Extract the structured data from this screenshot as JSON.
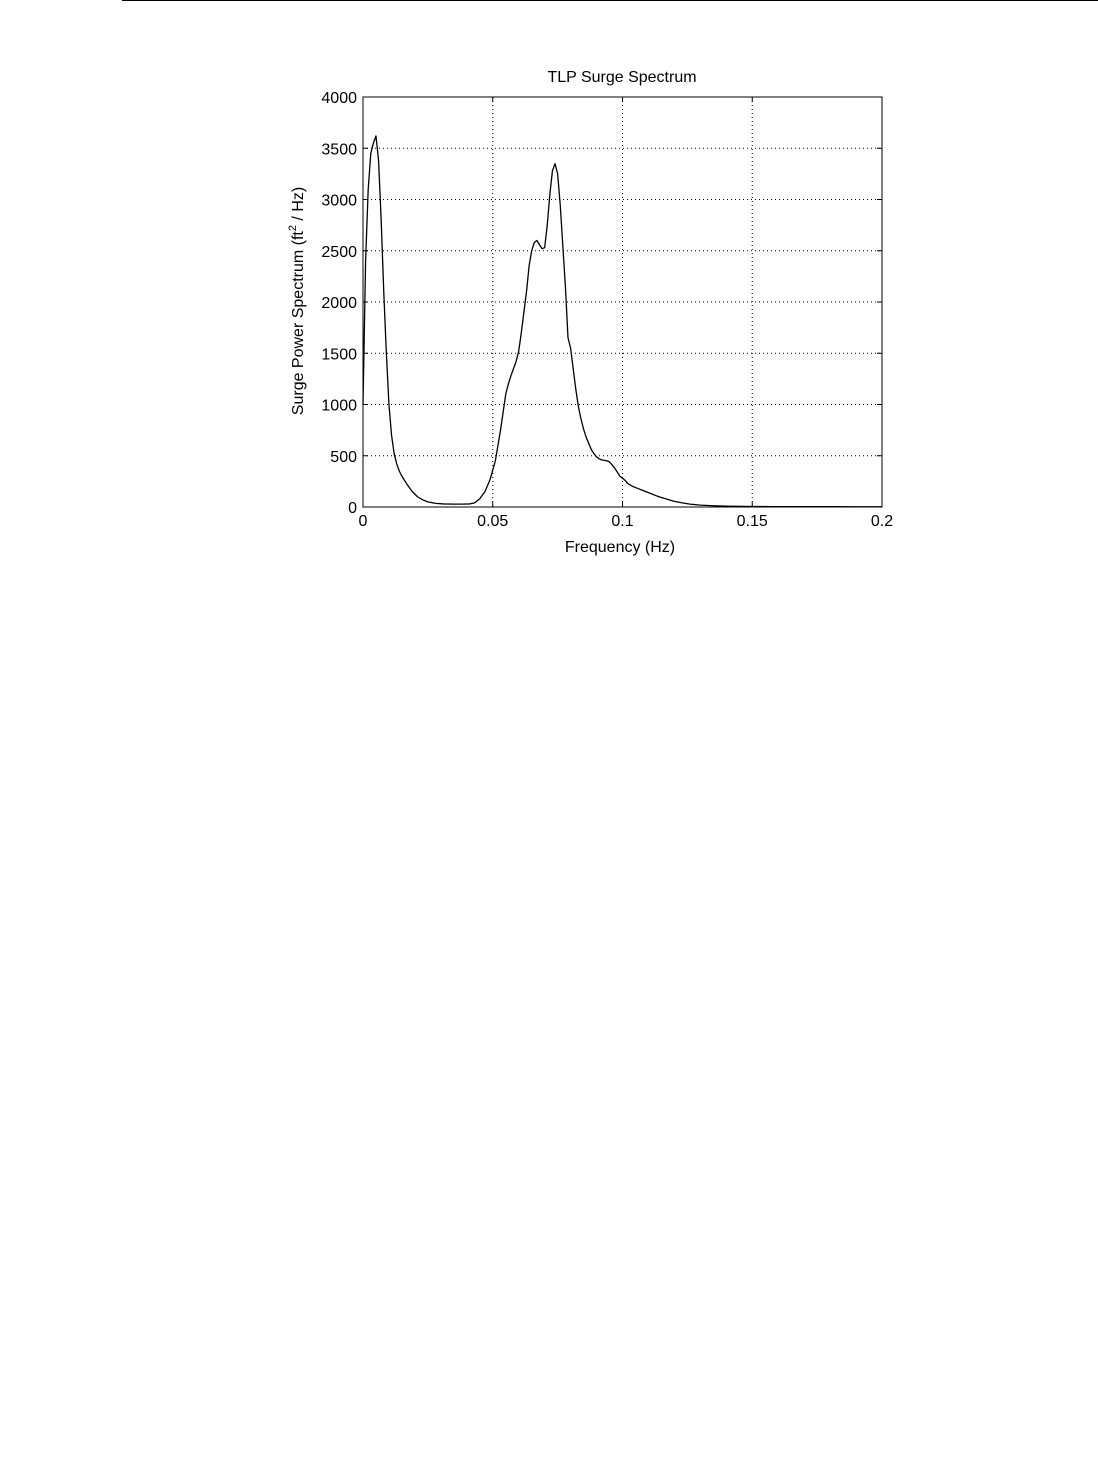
{
  "chart_data": {
    "type": "line",
    "title": "TLP Surge Spectrum",
    "xlabel": "Frequency (Hz)",
    "ylabel_prefix": "Surge Power Spectrum (ft",
    "ylabel_superscript": "2",
    "ylabel_suffix": " / Hz)",
    "xlim": [
      0,
      0.2
    ],
    "ylim": [
      0,
      4000
    ],
    "x_ticks": [
      0,
      0.05,
      0.1,
      0.15,
      0.2
    ],
    "x_tick_labels": [
      "0",
      "0.05",
      "0.1",
      "0.15",
      "0.2"
    ],
    "y_ticks": [
      0,
      500,
      1000,
      1500,
      2000,
      2500,
      3000,
      3500,
      4000
    ],
    "y_tick_labels": [
      "0",
      "500",
      "1000",
      "1500",
      "2000",
      "2500",
      "3000",
      "3500",
      "4000"
    ],
    "grid": true,
    "line_color": "#000000",
    "series": [
      {
        "x": [
          0,
          0.001,
          0.002,
          0.003,
          0.004,
          0.005,
          0.006,
          0.007,
          0.008,
          0.009,
          0.01,
          0.011,
          0.012,
          0.013,
          0.014,
          0.015,
          0.017,
          0.019,
          0.021,
          0.023,
          0.025,
          0.028,
          0.031,
          0.035,
          0.038,
          0.041,
          0.043,
          0.045,
          0.047,
          0.049,
          0.051,
          0.053,
          0.055,
          0.056,
          0.057,
          0.058,
          0.059,
          0.06,
          0.061,
          0.062,
          0.063,
          0.064,
          0.065,
          0.066,
          0.067,
          0.068,
          0.069,
          0.07,
          0.071,
          0.072,
          0.073,
          0.074,
          0.075,
          0.076,
          0.077,
          0.078,
          0.079,
          0.08,
          0.081,
          0.082,
          0.083,
          0.084,
          0.085,
          0.086,
          0.087,
          0.088,
          0.089,
          0.09,
          0.091,
          0.092,
          0.093,
          0.094,
          0.095,
          0.096,
          0.097,
          0.098,
          0.099,
          0.1,
          0.101,
          0.102,
          0.104,
          0.106,
          0.108,
          0.11,
          0.112,
          0.114,
          0.116,
          0.118,
          0.12,
          0.123,
          0.126,
          0.13,
          0.135,
          0.14,
          0.15,
          0.16,
          0.17,
          0.18,
          0.19,
          0.2
        ],
        "y": [
          1000,
          2400,
          3100,
          3450,
          3550,
          3620,
          3380,
          2800,
          2100,
          1500,
          1000,
          700,
          520,
          420,
          350,
          300,
          220,
          150,
          100,
          70,
          50,
          35,
          30,
          28,
          28,
          30,
          40,
          80,
          150,
          270,
          450,
          750,
          1100,
          1200,
          1280,
          1350,
          1420,
          1520,
          1700,
          1900,
          2100,
          2350,
          2500,
          2580,
          2600,
          2560,
          2520,
          2530,
          2750,
          3050,
          3280,
          3350,
          3250,
          2950,
          2550,
          2150,
          1650,
          1550,
          1350,
          1150,
          980,
          860,
          760,
          680,
          620,
          560,
          520,
          490,
          470,
          460,
          455,
          450,
          440,
          410,
          380,
          340,
          300,
          280,
          260,
          230,
          200,
          180,
          160,
          140,
          120,
          100,
          85,
          70,
          55,
          40,
          28,
          18,
          12,
          8,
          5,
          4,
          3,
          3,
          2,
          2
        ]
      }
    ]
  }
}
